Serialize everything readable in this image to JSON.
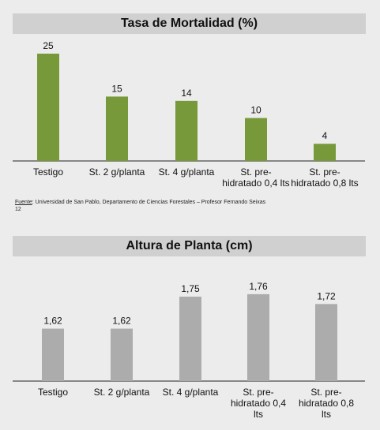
{
  "source": {
    "label": "Fuente",
    "text": ": Universidad de San Pablo, Departamento de Ciencias Forestales – Profesor Fernando Seixas",
    "page": "12"
  },
  "colors": {
    "bar1": "#77993a",
    "bar2": "#acacac",
    "title_bg": "#d0d0d0",
    "background": "#ececec"
  },
  "chart_data": [
    {
      "type": "bar",
      "title": "Tasa de Mortalidad (%)",
      "categories": [
        "Testigo",
        "St.  2 g/planta",
        "St. 4 g/planta",
        "St. pre-hidratado 0,4 lts",
        "St. pre-hidratado 0,8 lts"
      ],
      "category_lines": [
        [
          "Testigo"
        ],
        [
          "St.  2 g/planta"
        ],
        [
          "St. 4 g/planta"
        ],
        [
          "St. pre-",
          "hidratado 0,4 lts"
        ],
        [
          "St. pre-",
          "hidratado 0,8 lts"
        ]
      ],
      "values": [
        25,
        15,
        14,
        10,
        4
      ],
      "data_labels": [
        "25",
        "15",
        "14",
        "10",
        "4"
      ],
      "xlabel": "",
      "ylabel": "",
      "grid": false,
      "legend": "none"
    },
    {
      "type": "bar",
      "title": "Altura de Planta (cm)",
      "categories": [
        "Testigo",
        "St.  2 g/planta",
        "St. 4 g/planta",
        "St. pre-hidratado 0,4 lts",
        "St. pre-hidratado 0,8 lts"
      ],
      "category_lines": [
        [
          "Testigo"
        ],
        [
          "St.  2 g/planta"
        ],
        [
          "St. 4 g/planta"
        ],
        [
          "St. pre-",
          "hidratado 0,4",
          "lts"
        ],
        [
          "St. pre-",
          "hidratado 0,8",
          "lts"
        ]
      ],
      "values": [
        1.62,
        1.62,
        1.75,
        1.76,
        1.72
      ],
      "data_labels": [
        "1,62",
        "1,62",
        "1,75",
        "1,76",
        "1,72"
      ],
      "xlabel": "",
      "ylabel": "",
      "grid": false,
      "legend": "none"
    }
  ]
}
